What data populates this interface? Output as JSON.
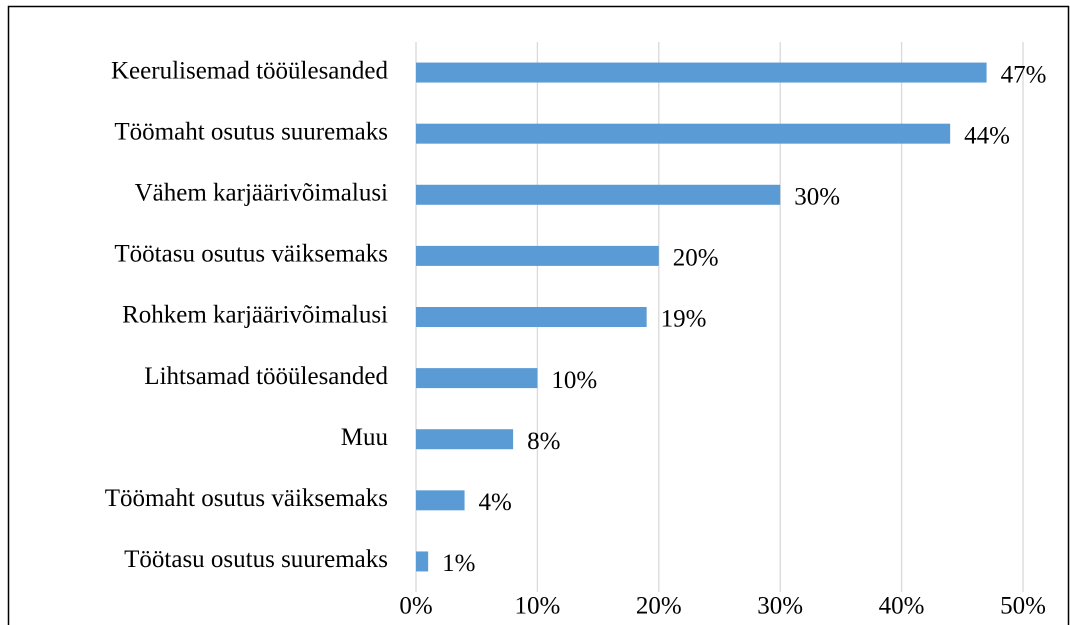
{
  "chart_data": {
    "type": "bar",
    "orientation": "horizontal",
    "categories": [
      "Keerulisemad tööülesanded",
      "Töömaht osutus suuremaks",
      "Vähem karjäärivõimalusi",
      "Töötasu osutus väiksemaks",
      "Rohkem karjäärivõimalusi",
      "Lihtsamad tööülesanded",
      "Muu",
      "Töömaht osutus väiksemaks",
      "Töötasu osutus suuremaks"
    ],
    "values": [
      47,
      44,
      30,
      20,
      19,
      10,
      8,
      4,
      1
    ],
    "value_labels": [
      "47%",
      "44%",
      "30%",
      "20%",
      "19%",
      "10%",
      "8%",
      "4%",
      "1%"
    ],
    "color": "#5b9bd5",
    "xlim": [
      0,
      50
    ],
    "xticks": [
      {
        "value": 0,
        "label": "0%"
      },
      {
        "value": 10,
        "label": "10%"
      },
      {
        "value": 20,
        "label": "20%"
      },
      {
        "value": 30,
        "label": "30%"
      },
      {
        "value": 40,
        "label": "40%"
      },
      {
        "value": 50,
        "label": "50%"
      }
    ],
    "grid": true
  }
}
